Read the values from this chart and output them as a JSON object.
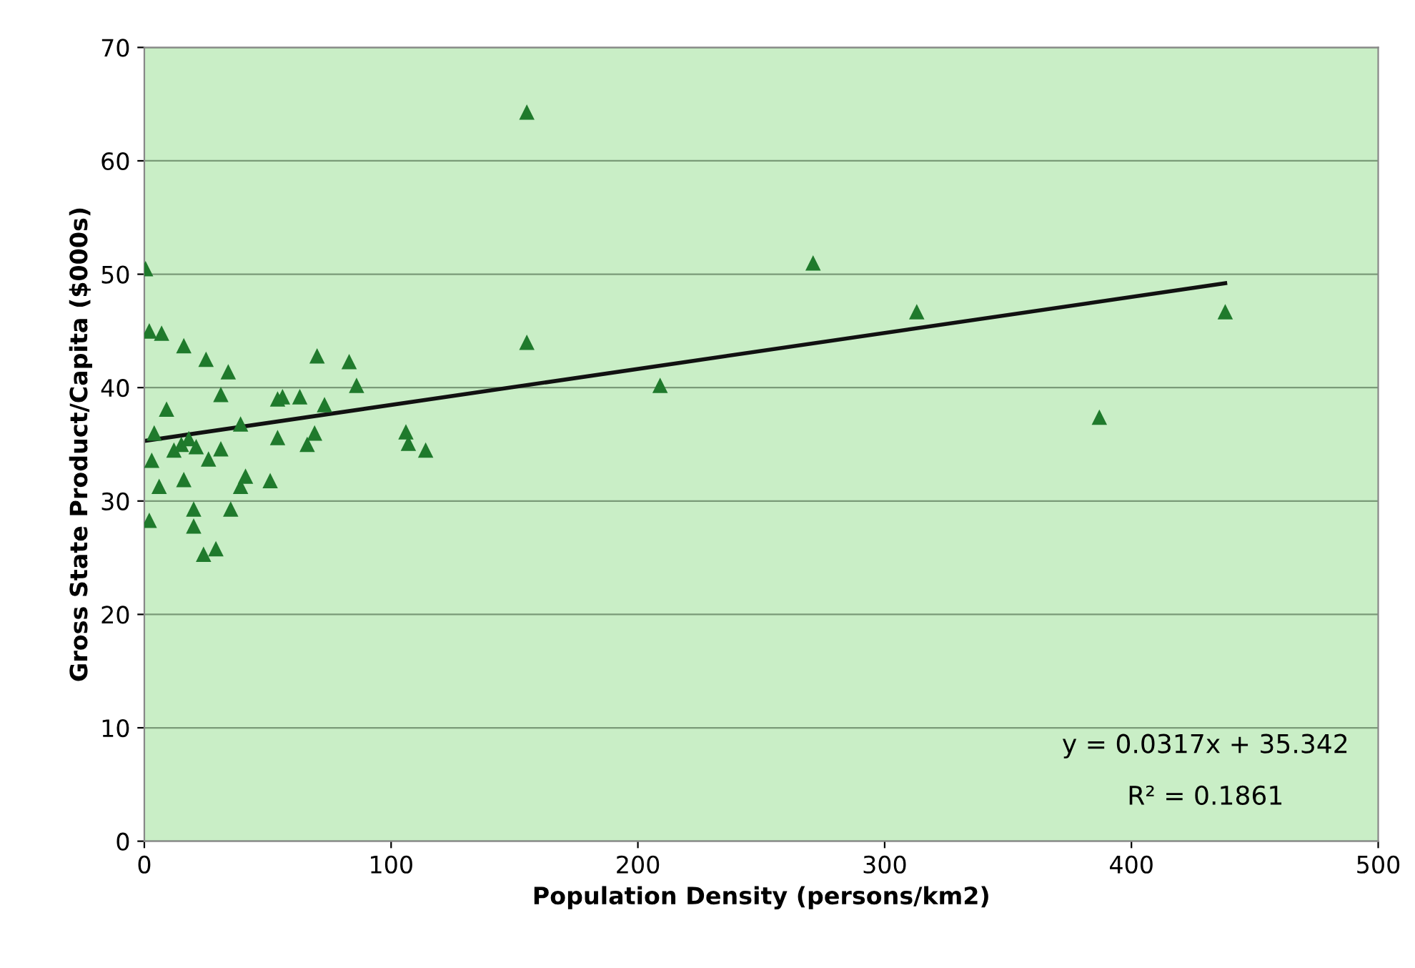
{
  "chart_data": {
    "type": "scatter",
    "xlabel": "Population Density (persons/km2)",
    "ylabel": "Gross State Product/Capita ($000s)",
    "xlim": [
      0,
      500
    ],
    "xticks": [
      0,
      100,
      200,
      300,
      400,
      500
    ],
    "ylim": [
      0,
      70
    ],
    "yticks": [
      0,
      10,
      20,
      30,
      40,
      50,
      60,
      70
    ],
    "grid": "y",
    "series": [
      {
        "marker": "triangle",
        "color": "#1f7a2c",
        "x": [
          0.5,
          2,
          7,
          16,
          25,
          34,
          9,
          31,
          4,
          3,
          6,
          2,
          12,
          15,
          18,
          21,
          16,
          26,
          31,
          20,
          20,
          24,
          29,
          35,
          39,
          41,
          39,
          51,
          54,
          54,
          56,
          63,
          66,
          69,
          70,
          73,
          83,
          86,
          106,
          107,
          114,
          155,
          155,
          209,
          271,
          313,
          387,
          438
        ],
        "values": [
          50.5,
          45,
          44.8,
          43.7,
          42.5,
          41.4,
          38.1,
          39.4,
          36,
          33.6,
          31.3,
          28.3,
          34.5,
          35,
          35.5,
          34.8,
          31.9,
          33.7,
          34.6,
          29.3,
          27.8,
          25.3,
          25.8,
          29.3,
          31.3,
          32.2,
          36.8,
          31.8,
          35.6,
          39,
          39.2,
          39.2,
          35,
          36,
          42.8,
          38.5,
          42.3,
          40.2,
          36.1,
          35.1,
          34.5,
          64.3,
          44,
          40.2,
          51,
          46.7,
          37.4,
          46.7
        ]
      },
      {
        "type": "line",
        "color": "#111111",
        "x": [
          0,
          438
        ],
        "values": [
          35.3,
          49.2
        ]
      }
    ],
    "annotations": [
      "y = 0.0317x + 35.342",
      "R² = 0.1861"
    ]
  }
}
